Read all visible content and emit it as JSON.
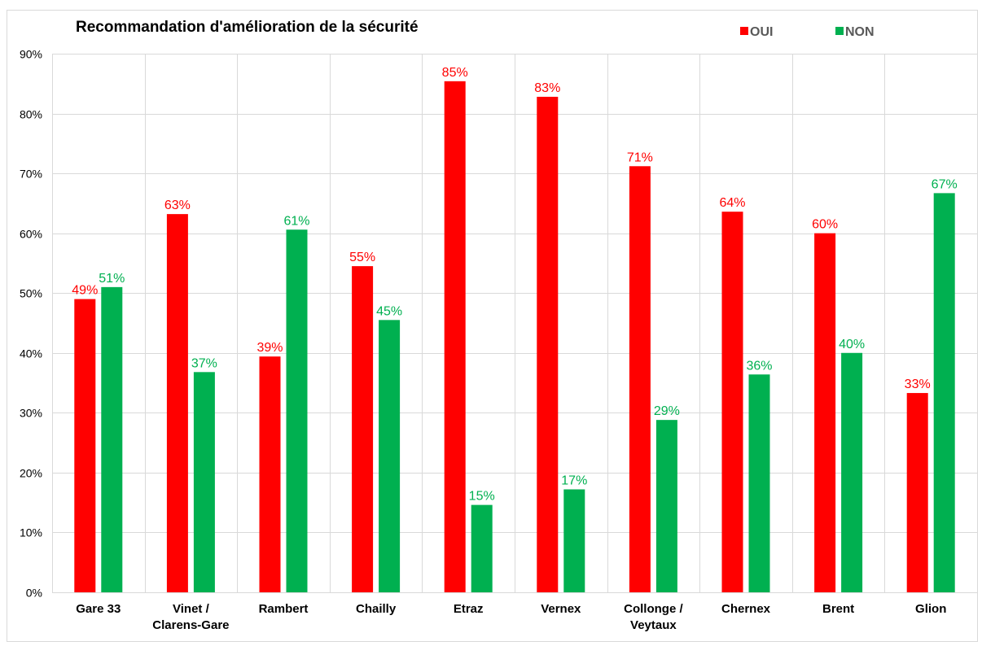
{
  "chart_data": {
    "type": "bar",
    "title": "Recommandation d'amélioration de la sécurité",
    "xlabel": "",
    "ylabel": "",
    "ylim": [
      0,
      90
    ],
    "y_ticks": [
      "0%",
      "10%",
      "20%",
      "30%",
      "40%",
      "50%",
      "60%",
      "70%",
      "80%",
      "90%"
    ],
    "y_tick_values": [
      0,
      10,
      20,
      30,
      40,
      50,
      60,
      70,
      80,
      90
    ],
    "grid": true,
    "legend_position": "top-right",
    "categories": [
      "Gare 33",
      "Vinet / Clarens-Gare",
      "Rambert",
      "Chailly",
      "Etraz",
      "Vernex",
      "Collonge / Veytaux",
      "Chernex",
      "Brent",
      "Glion"
    ],
    "category_lines": [
      [
        "Gare 33"
      ],
      [
        "Vinet /",
        "Clarens-Gare"
      ],
      [
        "Rambert"
      ],
      [
        "Chailly"
      ],
      [
        "Etraz"
      ],
      [
        "Vernex"
      ],
      [
        "Collonge /",
        "Veytaux"
      ],
      [
        "Chernex"
      ],
      [
        "Brent"
      ],
      [
        "Glion"
      ]
    ],
    "series": [
      {
        "name": "OUI",
        "color": "#ff0000",
        "values": [
          49,
          63.2,
          39.4,
          54.5,
          85.4,
          82.8,
          71.2,
          63.6,
          60,
          33.3
        ],
        "labels": [
          "49%",
          "63%",
          "39%",
          "55%",
          "85%",
          "83%",
          "71%",
          "64%",
          "60%",
          "33%"
        ]
      },
      {
        "name": "NON",
        "color": "#00b050",
        "values": [
          51,
          36.8,
          60.6,
          45.5,
          14.6,
          17.2,
          28.8,
          36.4,
          40,
          66.7
        ],
        "labels": [
          "51%",
          "37%",
          "61%",
          "45%",
          "15%",
          "17%",
          "29%",
          "36%",
          "40%",
          "67%"
        ]
      }
    ]
  }
}
